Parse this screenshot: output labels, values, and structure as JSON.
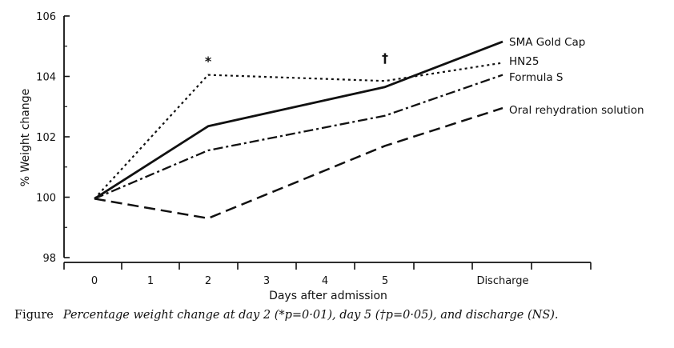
{
  "chart_data": {
    "type": "line",
    "xlabel": "Days after admission",
    "ylabel": "% Weight change",
    "categories": [
      "0",
      "1",
      "2",
      "3",
      "4",
      "5",
      "Discharge"
    ],
    "ylim": [
      98,
      106
    ],
    "yticks": [
      98,
      100,
      102,
      104,
      106
    ],
    "grid": false,
    "legend": "direct labels at line ends",
    "series": [
      {
        "name": "SMA Gold Cap",
        "style": "solid",
        "x": [
          "0",
          "2",
          "5",
          "Discharge"
        ],
        "values": [
          99.95,
          102.35,
          103.65,
          105.15
        ]
      },
      {
        "name": "HN25",
        "style": "dotted",
        "x": [
          "0",
          "2",
          "5",
          "Discharge"
        ],
        "values": [
          99.95,
          104.05,
          103.85,
          104.45
        ]
      },
      {
        "name": "Formula S",
        "style": "dash-dot",
        "x": [
          "0",
          "2",
          "5",
          "Discharge"
        ],
        "values": [
          99.95,
          101.55,
          102.7,
          104.05
        ]
      },
      {
        "name": "Oral rehydration solution",
        "style": "dashed",
        "x": [
          "0",
          "2",
          "5",
          "Discharge"
        ],
        "values": [
          99.95,
          99.3,
          101.7,
          102.95
        ]
      }
    ],
    "annotations": [
      {
        "text": "*",
        "x": "2"
      },
      {
        "text": "†",
        "x": "5"
      }
    ]
  },
  "caption": {
    "label": "Figure",
    "text": "Percentage weight change at day 2 (*p=0·01), day 5 (†p=0·05), and discharge (NS)."
  }
}
